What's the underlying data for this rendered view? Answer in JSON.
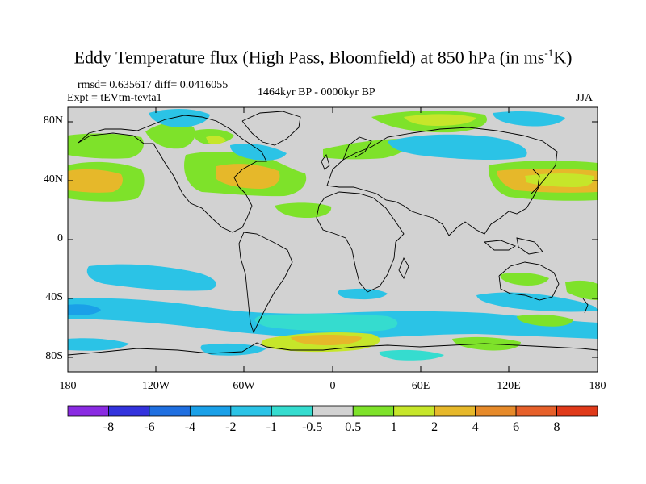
{
  "title": {
    "main": "Eddy Temperature flux (High Pass, Bloomfield) at 850 hPa (in ms",
    "sup": "-1",
    "end": "K)"
  },
  "stats": {
    "rmsd_diff": "rmsd= 0.635617 diff= 0.0416055",
    "expt": "Expt = tEVtm-tevta1",
    "period": "1464kyr BP - 0000kyr BP",
    "season": "JJA"
  },
  "axes": {
    "lat_ticks": [
      "80N",
      "40N",
      "0",
      "40S",
      "80S"
    ],
    "lon_ticks": [
      "180",
      "120W",
      "60W",
      "0",
      "60E",
      "120E",
      "180"
    ]
  },
  "colorbar": {
    "labels": [
      "-8",
      "-6",
      "-4",
      "-2",
      "-1",
      "-0.5",
      "0.5",
      "1",
      "2",
      "4",
      "6",
      "8"
    ],
    "colors": [
      "#8a2be2",
      "#3333dd",
      "#1f6fe0",
      "#1aa0e8",
      "#2bc3e6",
      "#35dccf",
      "#d2d2d2",
      "#7ee22a",
      "#c6e62a",
      "#e6b82a",
      "#e68a2a",
      "#e6602a",
      "#e03a1a"
    ]
  },
  "palette": {
    "background_field": "#d2d2d2",
    "coast": "#000000"
  }
}
